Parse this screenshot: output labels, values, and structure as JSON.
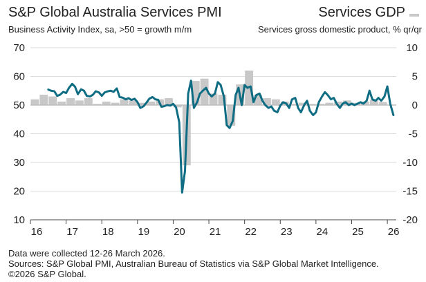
{
  "header": {
    "title": "S&P Global Australia Services PMI",
    "subtitle": "Business Activity Index, sa, >50 = growth m/m",
    "right_title": "Services GDP",
    "right_subtitle": "Services gross domestic product, % qr/qr"
  },
  "footer": {
    "line1": "Data were collected 12-26 March 2026.",
    "line2": "Sources: S&P Global PMI, Australian Bureau of Statistics via S&P Global Market Intelligence.",
    "line3": "©2026 S&P Global."
  },
  "chart_data": {
    "type": "bar+line",
    "title": "S&P Global Australia Services PMI",
    "subtitle": "Business Activity Index, sa, >50 = growth m/m",
    "left_axis": {
      "ylim": [
        10,
        70
      ],
      "ticks": [
        10,
        20,
        30,
        40,
        50,
        60,
        70
      ]
    },
    "right_axis": {
      "ylim": [
        -20,
        10
      ],
      "ticks": [
        -20,
        -15,
        -10,
        -5,
        0,
        5,
        10
      ]
    },
    "x_axis": {
      "xlim": [
        2016.0,
        2026.25
      ],
      "tick_labels": [
        "16",
        "17",
        "18",
        "19",
        "20",
        "21",
        "22",
        "23",
        "24",
        "25",
        "26"
      ],
      "ticks": [
        2016,
        2017,
        2018,
        2019,
        2020,
        2021,
        2022,
        2023,
        2024,
        2025,
        2026
      ]
    },
    "colors": {
      "line": "#0e6c83",
      "bars": "#c8c8c8",
      "baseline": "#bdbdbd",
      "grid": "#d9d9d9",
      "axis": "#444444"
    },
    "series": [
      {
        "name": "Services GDP",
        "axis": "right",
        "type": "bar",
        "x": [
          2016.125,
          2016.375,
          2016.625,
          2016.875,
          2017.125,
          2017.375,
          2017.625,
          2017.875,
          2018.125,
          2018.375,
          2018.625,
          2018.875,
          2019.125,
          2019.375,
          2019.625,
          2019.875,
          2020.125,
          2020.375,
          2020.625,
          2020.875,
          2021.125,
          2021.375,
          2021.625,
          2021.875,
          2022.125,
          2022.375,
          2022.625,
          2022.875,
          2023.125,
          2023.375,
          2023.625,
          2023.875,
          2024.125,
          2024.375,
          2024.625,
          2024.875,
          2025.125,
          2025.375,
          2025.625,
          2025.875
        ],
        "values": [
          1.0,
          1.8,
          1.5,
          0.6,
          1.2,
          0.8,
          1.2,
          0.2,
          0.6,
          0.4,
          1.0,
          0.8,
          0.4,
          0.6,
          1.0,
          1.2,
          -0.4,
          -10.5,
          4.2,
          4.6,
          2.0,
          1.8,
          -3.6,
          3.6,
          6.0,
          1.8,
          1.2,
          1.0,
          0.6,
          0.2,
          0.4,
          0.2,
          0.2,
          0.4,
          0.6,
          0.8,
          0.4,
          0.6,
          0.9,
          0.5
        ]
      },
      {
        "name": "Business Activity Index",
        "axis": "left",
        "type": "line",
        "x": [
          2016.5,
          2016.58,
          2016.67,
          2016.75,
          2016.83,
          2016.92,
          2017.0,
          2017.08,
          2017.17,
          2017.25,
          2017.33,
          2017.42,
          2017.5,
          2017.58,
          2017.67,
          2017.75,
          2017.83,
          2017.92,
          2018.0,
          2018.08,
          2018.17,
          2018.25,
          2018.33,
          2018.42,
          2018.5,
          2018.58,
          2018.67,
          2018.75,
          2018.83,
          2018.92,
          2019.0,
          2019.08,
          2019.17,
          2019.25,
          2019.33,
          2019.42,
          2019.5,
          2019.58,
          2019.67,
          2019.75,
          2019.83,
          2019.92,
          2020.0,
          2020.08,
          2020.17,
          2020.25,
          2020.33,
          2020.42,
          2020.5,
          2020.58,
          2020.67,
          2020.75,
          2020.83,
          2020.92,
          2021.0,
          2021.08,
          2021.17,
          2021.25,
          2021.33,
          2021.42,
          2021.5,
          2021.58,
          2021.67,
          2021.75,
          2021.83,
          2021.92,
          2022.0,
          2022.08,
          2022.17,
          2022.25,
          2022.33,
          2022.42,
          2022.5,
          2022.58,
          2022.67,
          2022.75,
          2022.83,
          2022.92,
          2023.0,
          2023.08,
          2023.17,
          2023.25,
          2023.33,
          2023.42,
          2023.5,
          2023.58,
          2023.67,
          2023.75,
          2023.83,
          2023.92,
          2024.0,
          2024.08,
          2024.17,
          2024.25,
          2024.33,
          2024.42,
          2024.5,
          2024.58,
          2024.67,
          2024.75,
          2024.83,
          2024.92,
          2025.0,
          2025.08,
          2025.17,
          2025.25,
          2025.33,
          2025.42,
          2025.5,
          2025.58,
          2025.67,
          2025.75,
          2025.83,
          2025.92,
          2026.0,
          2026.08,
          2026.17
        ],
        "values": [
          55.4,
          55.0,
          54.8,
          53.2,
          53.6,
          54.6,
          54.2,
          56.0,
          57.4,
          56.4,
          53.8,
          55.5,
          55.0,
          53.2,
          53.0,
          53.6,
          54.8,
          54.4,
          53.2,
          54.4,
          54.8,
          55.0,
          54.6,
          55.8,
          52.8,
          52.6,
          52.0,
          52.4,
          51.8,
          52.2,
          51.0,
          49.0,
          49.6,
          50.8,
          52.2,
          52.8,
          52.0,
          51.8,
          49.4,
          49.6,
          50.0,
          49.8,
          50.4,
          49.2,
          44.0,
          19.5,
          27.0,
          54.0,
          58.5,
          49.0,
          51.0,
          54.0,
          55.0,
          56.0,
          54.0,
          53.0,
          54.0,
          58.0,
          57.0,
          53.0,
          43.0,
          42.0,
          44.5,
          53.5,
          56.0,
          50.0,
          57.0,
          56.0,
          56.5,
          51.0,
          53.5,
          54.0,
          51.5,
          50.0,
          49.0,
          49.5,
          48.0,
          47.5,
          49.8,
          51.0,
          50.5,
          49.0,
          52.0,
          52.5,
          49.0,
          47.5,
          50.0,
          51.5,
          48.0,
          46.5,
          47.5,
          51.0,
          53.0,
          54.5,
          53.5,
          52.0,
          52.5,
          50.5,
          49.0,
          50.5,
          51.0,
          50.0,
          50.5,
          50.0,
          50.5,
          51.0,
          50.5,
          51.5,
          55.0,
          52.0,
          51.5,
          52.5,
          51.5,
          53.0,
          56.5,
          50.5,
          46.5
        ]
      }
    ]
  }
}
